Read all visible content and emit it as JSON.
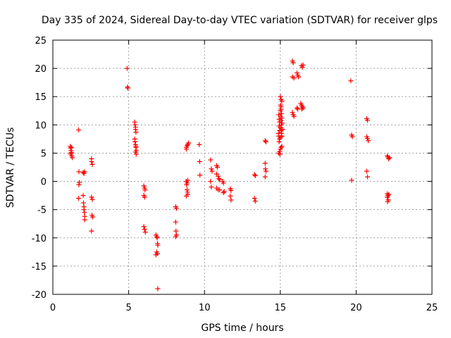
{
  "chart_data": {
    "type": "scatter",
    "title": "Day 335 of 2024, Sidereal Day-to-day VTEC variation (SDTVAR) for receiver glps",
    "xlabel": "GPS time / hours",
    "ylabel": "SDTVAR / TECUs",
    "xlim": [
      0,
      25
    ],
    "ylim": [
      -20,
      25
    ],
    "xticks": [
      0,
      5,
      10,
      15,
      20,
      25
    ],
    "yticks": [
      -20,
      -15,
      -10,
      -5,
      0,
      5,
      10,
      15,
      20,
      25
    ],
    "grid": true,
    "marker": "plus",
    "marker_color": "#ff0000",
    "series": [
      {
        "name": "SDTVAR",
        "points": [
          [
            1.15,
            6.2
          ],
          [
            1.18,
            5.9
          ],
          [
            1.2,
            5.5
          ],
          [
            1.22,
            5.2
          ],
          [
            1.18,
            4.8
          ],
          [
            1.25,
            4.5
          ],
          [
            1.2,
            5.0
          ],
          [
            1.28,
            4.2
          ],
          [
            1.22,
            6.0
          ],
          [
            1.7,
            9.1
          ],
          [
            1.72,
            1.7
          ],
          [
            1.75,
            -0.2
          ],
          [
            1.72,
            -0.6
          ],
          [
            1.7,
            -3.0
          ],
          [
            2.0,
            1.6
          ],
          [
            2.05,
            1.4
          ],
          [
            2.1,
            1.7
          ],
          [
            2.0,
            -2.5
          ],
          [
            2.02,
            -3.8
          ],
          [
            2.05,
            -4.5
          ],
          [
            2.05,
            -5.0
          ],
          [
            2.08,
            -5.5
          ],
          [
            2.1,
            -6.2
          ],
          [
            2.1,
            -6.8
          ],
          [
            2.55,
            4.0
          ],
          [
            2.55,
            3.5
          ],
          [
            2.6,
            3.0
          ],
          [
            2.55,
            -2.8
          ],
          [
            2.6,
            -3.2
          ],
          [
            2.58,
            -6.0
          ],
          [
            2.62,
            -6.3
          ],
          [
            2.55,
            -8.8
          ],
          [
            4.9,
            20.0
          ],
          [
            4.92,
            16.7
          ],
          [
            4.95,
            16.5
          ],
          [
            5.4,
            10.5
          ],
          [
            5.42,
            10.0
          ],
          [
            5.45,
            9.6
          ],
          [
            5.45,
            9.2
          ],
          [
            5.48,
            8.7
          ],
          [
            5.4,
            7.5
          ],
          [
            5.42,
            7.0
          ],
          [
            5.45,
            6.5
          ],
          [
            5.48,
            6.0
          ],
          [
            5.5,
            5.5
          ],
          [
            5.45,
            5.2
          ],
          [
            5.5,
            4.8
          ],
          [
            5.48,
            6.2
          ],
          [
            6.0,
            -0.8
          ],
          [
            6.05,
            -1.2
          ],
          [
            6.08,
            -1.5
          ],
          [
            6.0,
            -2.5
          ],
          [
            6.05,
            -2.8
          ],
          [
            6.0,
            -8.0
          ],
          [
            6.05,
            -8.5
          ],
          [
            6.1,
            -9.0
          ],
          [
            6.8,
            -9.5
          ],
          [
            6.85,
            -9.8
          ],
          [
            6.88,
            -10.0
          ],
          [
            6.9,
            -11.0
          ],
          [
            6.92,
            -11.3
          ],
          [
            6.85,
            -12.5
          ],
          [
            6.9,
            -12.8
          ],
          [
            6.8,
            -13.0
          ],
          [
            6.92,
            -19.0
          ],
          [
            8.1,
            -4.5
          ],
          [
            8.15,
            -4.8
          ],
          [
            8.1,
            -7.2
          ],
          [
            8.12,
            -8.8
          ],
          [
            8.15,
            -9.5
          ],
          [
            8.1,
            -9.8
          ],
          [
            8.8,
            6.0
          ],
          [
            8.85,
            6.3
          ],
          [
            8.9,
            6.5
          ],
          [
            8.95,
            6.8
          ],
          [
            8.8,
            5.7
          ],
          [
            8.8,
            0.0
          ],
          [
            8.85,
            -0.3
          ],
          [
            8.9,
            0.2
          ],
          [
            8.82,
            -0.6
          ],
          [
            8.85,
            -1.5
          ],
          [
            8.88,
            -1.9
          ],
          [
            8.9,
            -2.3
          ],
          [
            8.8,
            -2.6
          ],
          [
            9.65,
            6.5
          ],
          [
            9.68,
            3.5
          ],
          [
            9.7,
            1.1
          ],
          [
            10.4,
            3.8
          ],
          [
            10.45,
            2.2
          ],
          [
            10.5,
            1.8
          ],
          [
            10.4,
            0.0
          ],
          [
            10.45,
            -1.0
          ],
          [
            10.8,
            2.8
          ],
          [
            10.85,
            2.5
          ],
          [
            10.8,
            1.3
          ],
          [
            10.9,
            0.9
          ],
          [
            10.95,
            0.5
          ],
          [
            11.0,
            0.3
          ],
          [
            10.8,
            -1.2
          ],
          [
            10.9,
            -1.5
          ],
          [
            11.0,
            -1.5
          ],
          [
            11.2,
            0.0
          ],
          [
            11.25,
            -0.3
          ],
          [
            11.3,
            -1.8
          ],
          [
            11.25,
            -2.0
          ],
          [
            11.7,
            -1.3
          ],
          [
            11.75,
            -1.6
          ],
          [
            11.7,
            -2.6
          ],
          [
            11.75,
            -3.3
          ],
          [
            13.3,
            1.2
          ],
          [
            13.35,
            1.0
          ],
          [
            13.3,
            -3.0
          ],
          [
            13.35,
            -3.5
          ],
          [
            14.0,
            7.2
          ],
          [
            14.05,
            7.0
          ],
          [
            14.0,
            3.2
          ],
          [
            14.02,
            2.2
          ],
          [
            14.05,
            1.8
          ],
          [
            14.0,
            0.8
          ],
          [
            14.9,
            11.8
          ],
          [
            14.92,
            11.0
          ],
          [
            14.95,
            10.5
          ],
          [
            14.92,
            9.8
          ],
          [
            14.95,
            9.0
          ],
          [
            14.88,
            8.5
          ],
          [
            14.9,
            8.0
          ],
          [
            14.95,
            7.5
          ],
          [
            14.92,
            7.0
          ],
          [
            14.9,
            5.0
          ],
          [
            14.95,
            5.3
          ],
          [
            15.0,
            5.7
          ],
          [
            15.05,
            6.0
          ],
          [
            15.1,
            6.2
          ],
          [
            14.98,
            4.8
          ],
          [
            15.0,
            15.0
          ],
          [
            15.05,
            14.5
          ],
          [
            15.02,
            13.5
          ],
          [
            15.05,
            12.8
          ],
          [
            15.08,
            12.0
          ],
          [
            15.0,
            12.5
          ],
          [
            15.02,
            11.5
          ],
          [
            15.05,
            10.8
          ],
          [
            15.08,
            10.0
          ],
          [
            15.0,
            9.5
          ],
          [
            15.05,
            9.0
          ],
          [
            15.08,
            8.5
          ],
          [
            15.1,
            8.0
          ],
          [
            15.02,
            7.8
          ],
          [
            15.05,
            13.2
          ],
          [
            15.1,
            11.2
          ],
          [
            15.12,
            10.3
          ],
          [
            15.15,
            9.2
          ],
          [
            15.1,
            14.2
          ],
          [
            15.8,
            21.3
          ],
          [
            15.85,
            21.0
          ],
          [
            15.8,
            18.5
          ],
          [
            15.9,
            18.3
          ],
          [
            15.8,
            12.2
          ],
          [
            15.85,
            11.8
          ],
          [
            15.9,
            11.5
          ],
          [
            16.1,
            19.2
          ],
          [
            16.15,
            18.8
          ],
          [
            16.2,
            18.5
          ],
          [
            16.1,
            13.0
          ],
          [
            16.15,
            12.8
          ],
          [
            16.4,
            20.5
          ],
          [
            16.45,
            20.2
          ],
          [
            16.5,
            20.6
          ],
          [
            16.35,
            13.8
          ],
          [
            16.4,
            13.5
          ],
          [
            16.45,
            13.2
          ],
          [
            16.5,
            13.0
          ],
          [
            16.42,
            12.8
          ],
          [
            19.65,
            17.8
          ],
          [
            19.7,
            8.2
          ],
          [
            19.75,
            7.9
          ],
          [
            19.7,
            0.2
          ],
          [
            20.7,
            11.1
          ],
          [
            20.75,
            10.8
          ],
          [
            20.7,
            7.9
          ],
          [
            20.75,
            7.6
          ],
          [
            20.8,
            7.2
          ],
          [
            20.7,
            1.8
          ],
          [
            20.75,
            0.8
          ],
          [
            22.05,
            4.5
          ],
          [
            22.1,
            4.3
          ],
          [
            22.15,
            4.0
          ],
          [
            22.2,
            4.2
          ],
          [
            22.05,
            -2.2
          ],
          [
            22.1,
            -2.5
          ],
          [
            22.15,
            -2.3
          ],
          [
            22.05,
            -2.8
          ],
          [
            22.12,
            -3.3
          ],
          [
            22.08,
            -3.6
          ]
        ]
      }
    ]
  }
}
